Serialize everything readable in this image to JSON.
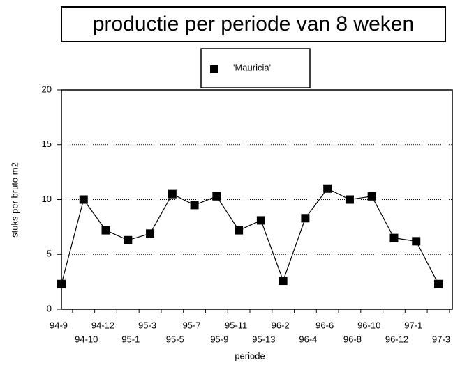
{
  "chart_data": {
    "type": "line",
    "title": "productie per periode van 8 weken",
    "x_label": "periode",
    "y_label": "stuks per bruto m2",
    "categories": [
      "94-9",
      "94-10",
      "94-12",
      "95-1",
      "95-3",
      "95-5",
      "95-7",
      "95-9",
      "95-11",
      "95-13",
      "96-2",
      "96-4",
      "96-6",
      "96-8",
      "96-10",
      "96-12",
      "97-1",
      "97-3"
    ],
    "series": [
      {
        "name": "'Mauricia'",
        "color": "#000000",
        "values": [
          2.3,
          10.0,
          7.2,
          6.3,
          6.9,
          10.5,
          9.5,
          10.3,
          7.2,
          8.1,
          2.6,
          8.3,
          11.0,
          10.0,
          10.3,
          6.5,
          6.2,
          2.3
        ]
      }
    ],
    "ylim": [
      0,
      20
    ],
    "yticks": [
      0,
      5,
      10,
      15,
      20
    ],
    "grid": true
  }
}
